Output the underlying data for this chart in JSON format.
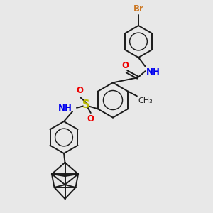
{
  "background_color": "#e8e8e8",
  "bond_color": "#1a1a1a",
  "br_color": "#cc7722",
  "o_color": "#ee0000",
  "n_color": "#0000ee",
  "s_color": "#bbbb00",
  "line_width": 1.4,
  "font_size": 8.5,
  "fig_width": 3.0,
  "fig_height": 3.0,
  "dpi": 100,
  "xlim": [
    0,
    10
  ],
  "ylim": [
    0,
    10
  ]
}
